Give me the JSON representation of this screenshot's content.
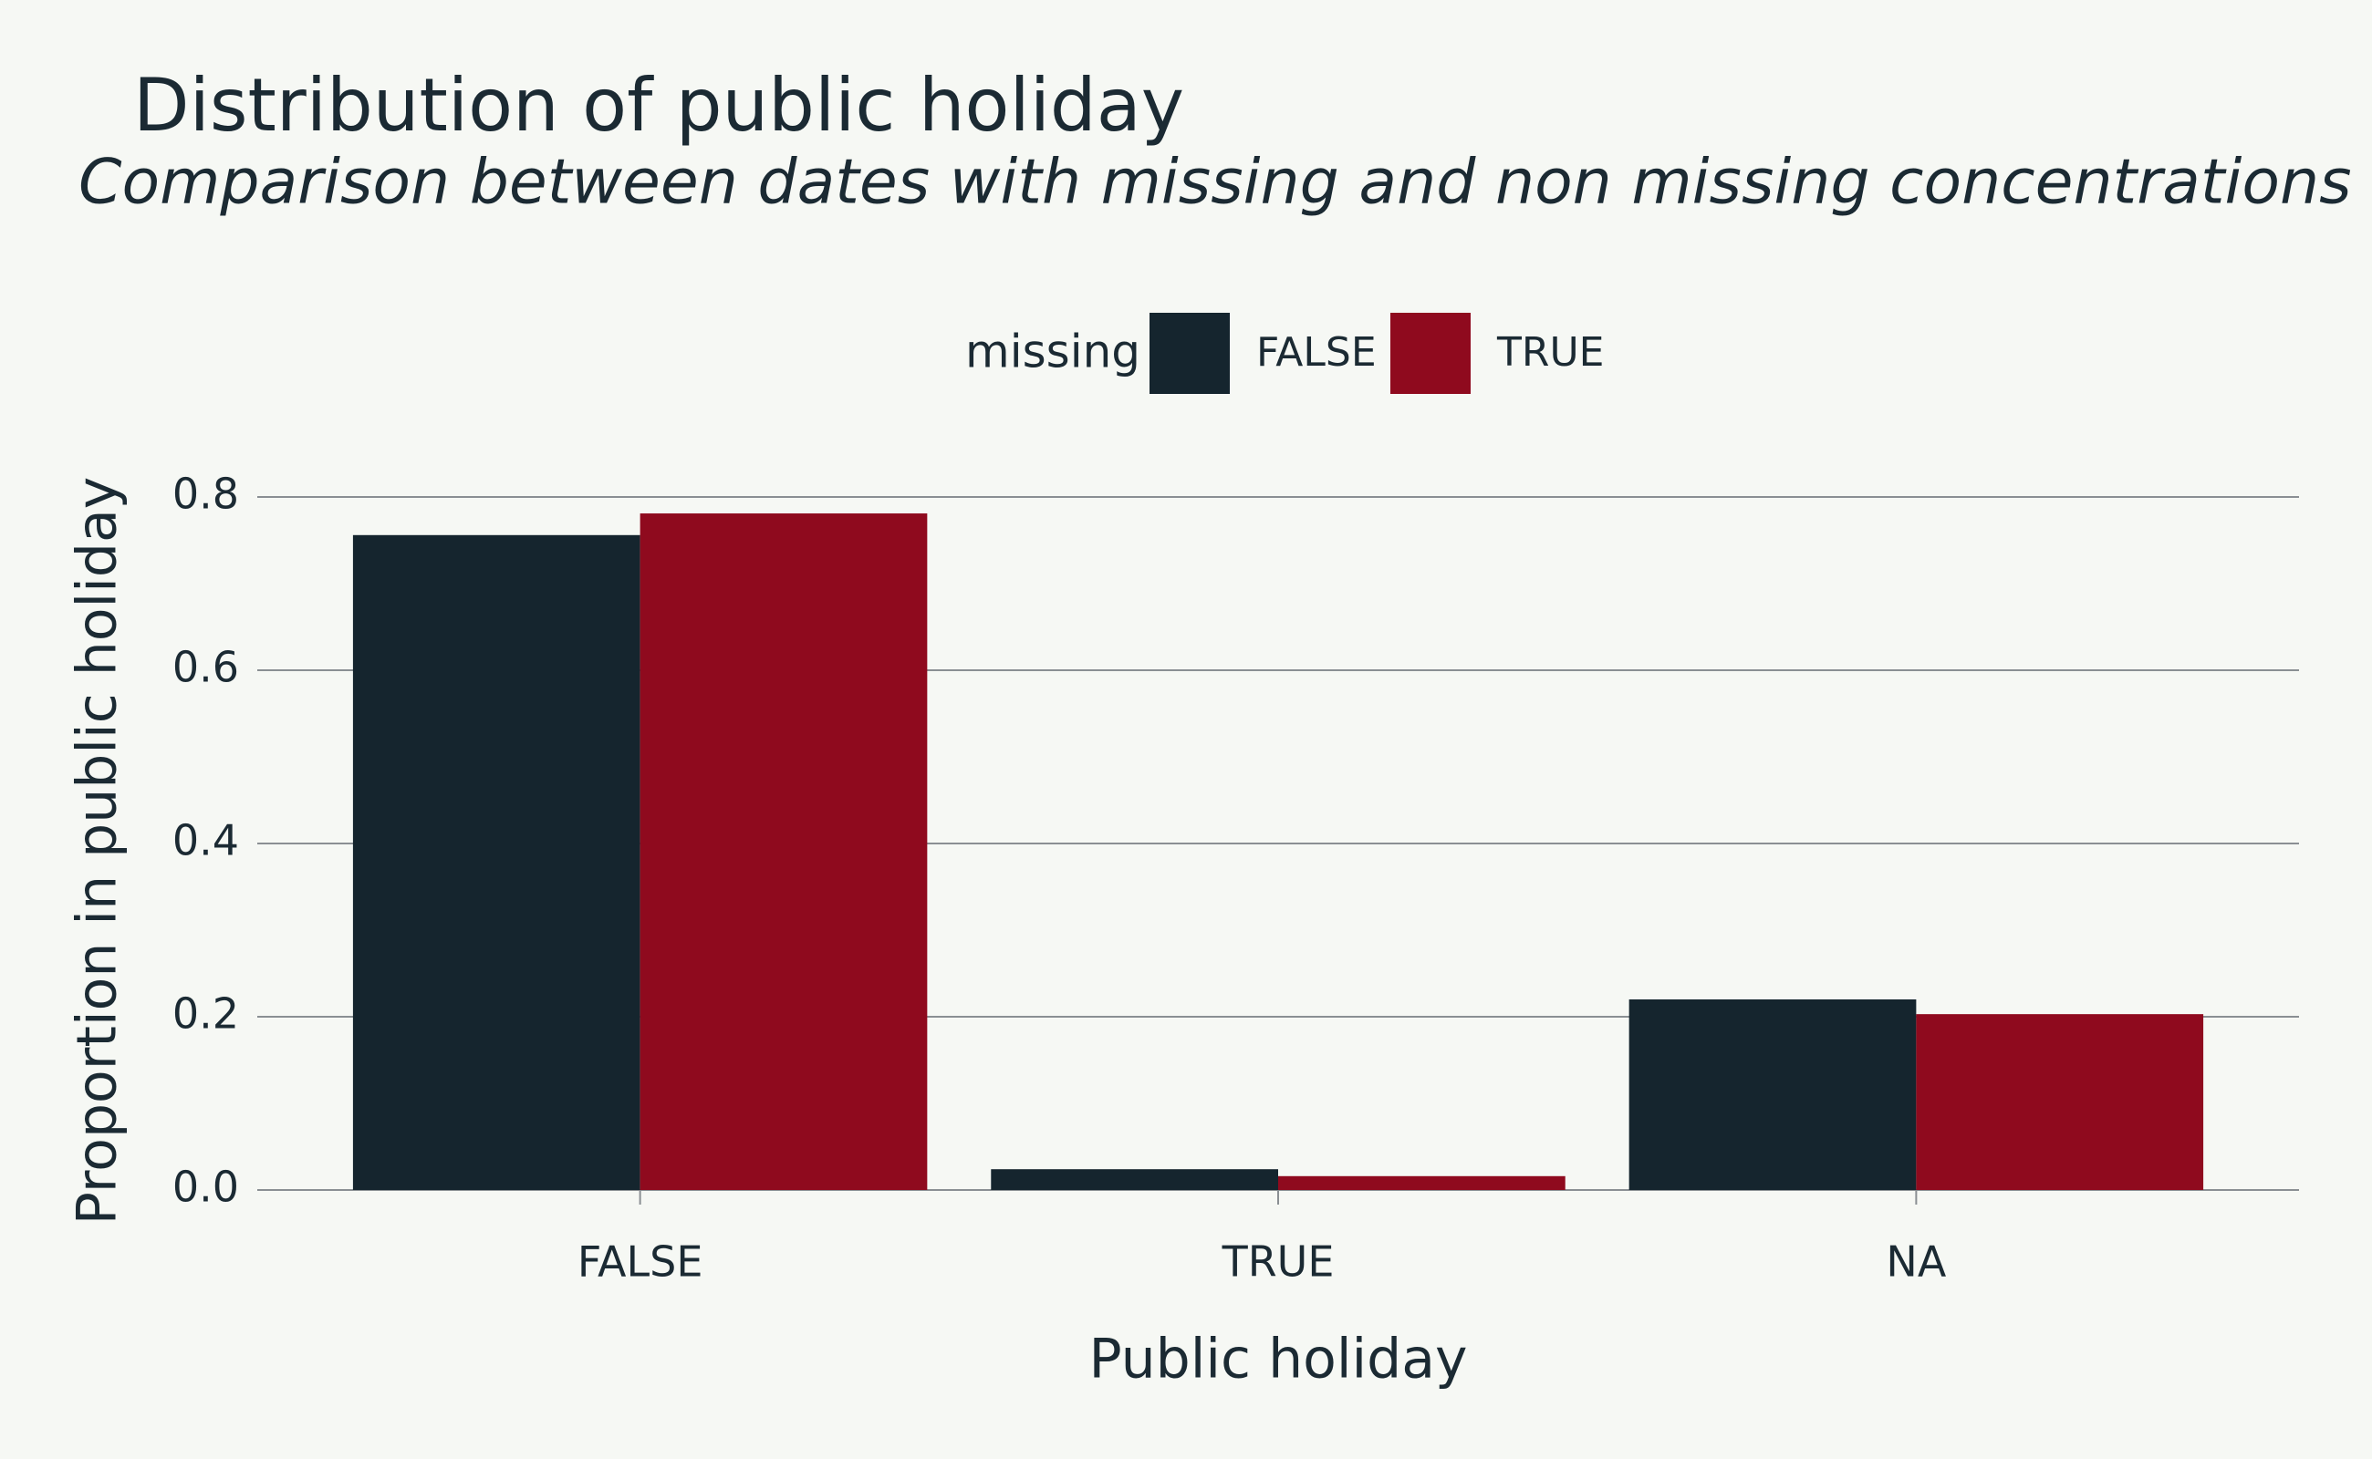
{
  "chart_data": {
    "type": "bar",
    "title": "Distribution of public holiday",
    "subtitle": "Comparison between dates with missing and non missing concentrations",
    "x_label": "Public holiday",
    "y_label": "Proportion in public holiday",
    "legend_title": "missing",
    "legend_position": "top",
    "categories": [
      "FALSE",
      "TRUE",
      "NA"
    ],
    "series": [
      {
        "name": "FALSE",
        "color": "#15252e",
        "values": [
          0.756,
          0.024,
          0.22
        ]
      },
      {
        "name": "TRUE",
        "color": "#8f0a1e",
        "values": [
          0.781,
          0.016,
          0.203
        ]
      }
    ],
    "ylim": [
      0,
      0.8
    ],
    "yticks": [
      {
        "value": 0,
        "label": "0.0"
      },
      0.2,
      0.4,
      0.6,
      0.8
    ],
    "grid": true
  }
}
